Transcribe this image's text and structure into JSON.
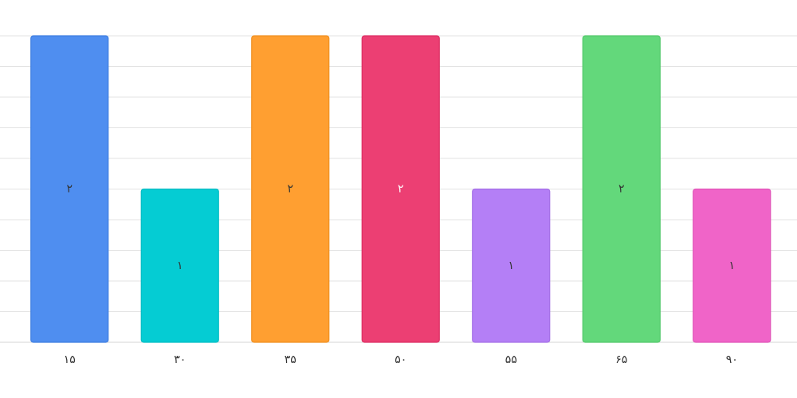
{
  "chart_data": {
    "type": "bar",
    "categories": [
      "۱۵",
      "۳۰",
      "۳۵",
      "۵۰",
      "۵۵",
      "۶۵",
      "۹۰"
    ],
    "values": [
      2,
      1,
      2,
      2,
      1,
      2,
      1
    ],
    "data_labels": [
      "۲",
      "۱",
      "۲",
      "۲",
      "۱",
      "۲",
      "۱"
    ],
    "title": "",
    "xlabel": "",
    "ylabel": "",
    "ylim": [
      0,
      2
    ],
    "grid": true,
    "legend": "none",
    "colors": [
      "#4f8ef0",
      "#05ccd3",
      "#ff9f31",
      "#ec3f73",
      "#b47ff6",
      "#63d87b",
      "#f064c8"
    ],
    "border_colors": [
      "#3f7ee0",
      "#04bcc3",
      "#ef8f21",
      "#dc2f63",
      "#a46fe6",
      "#53c86b",
      "#e054b8"
    ],
    "label_colors": [
      "#333333",
      "#333333",
      "#333333",
      "#ffffff",
      "#333333",
      "#333333",
      "#333333"
    ]
  }
}
